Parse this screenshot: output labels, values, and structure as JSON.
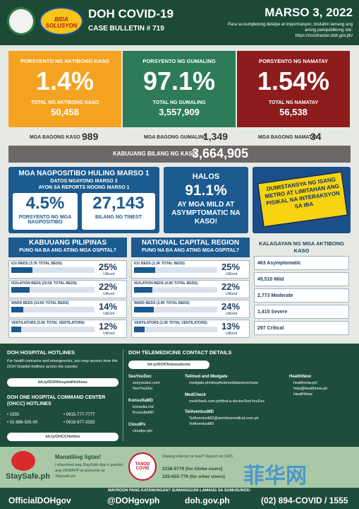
{
  "header": {
    "title": "DOH COVID-19",
    "subtitle": "CASE BULLETIN # 719",
    "date": "MARSO 3, 2022",
    "note": "Para sa kumpletong detalye at impormasyon, bisitahin lamang ang aming pampublikong site:",
    "url": "https://ncovtracker.doh.gov.ph/",
    "badge": "BIDA SOLUSYON"
  },
  "cards": [
    {
      "label": "PORSYENTO NG AKTIBONG KASO",
      "percent": "1.4%",
      "total_label": "TOTAL NG AKTIBONG KASO",
      "total": "50,458",
      "new_label": "MGA BAGONG KASO",
      "new": "989"
    },
    {
      "label": "PORSYENTO NG GUMALING",
      "percent": "97.1%",
      "total_label": "TOTAL NG GUMALING",
      "total": "3,557,909",
      "new_label": "MGA BAGONG GUMALING",
      "new": "1,349"
    },
    {
      "label": "PORSYENTO NG NAMATAY",
      "percent": "1.54%",
      "total_label": "TOTAL NG NAMATAY",
      "total": "56,538",
      "new_label": "MGA BAGONG NAMATAY",
      "new": "34"
    }
  ],
  "total_cases": {
    "label": "KABUUANG BILANG NG KASO",
    "value": "3,664,905"
  },
  "positivity": {
    "title": "MGA NAGPOSITIBO HULING MARSO 1",
    "line1": "DATOS NGAYONG MARSO 3",
    "line2": "AYON SA REPORTS NOONG MARSO 1",
    "rate": "4.5%",
    "rate_label": "PORSYENTO NG MGA NAGPOSITIBO",
    "tested": "27,143",
    "tested_label": "BILANG NG TINEST"
  },
  "mild": {
    "top": "HALOS",
    "value": "91.1%",
    "text": "AY MGA MILD AT ASYMPTOMATIC NA KASO!"
  },
  "distancing": {
    "text": "DUMISTANSYA NG ISANG METRO AT LIMITAHAN ANG PISIKAL NA INTERAKSYON SA IBA"
  },
  "hospitals": {
    "utilized_label": "Utilized",
    "regions": [
      {
        "title": "KABUUANG PILIPINAS",
        "subtitle": "PUNO NA BA ANG ATING MGA OSPITAL?",
        "rows": [
          {
            "label": "ICU BEDS (3.7K TOTAL BEDS)",
            "value": 25,
            "value_label": "25%"
          },
          {
            "label": "ISOLATION BEDS (20.5K TOTAL BEDS)",
            "value": 22,
            "value_label": "22%"
          },
          {
            "label": "WARD BEDS (14.0K TOTAL BEDS)",
            "value": 14,
            "value_label": "14%"
          },
          {
            "label": "VENTILATORS (3.0K TOTAL VENTILATORS)",
            "value": 12,
            "value_label": "12%"
          }
        ]
      },
      {
        "title": "NATIONAL CAPITAL REGION",
        "subtitle": "PUNO NA BA ANG ATING MGA OSPITAL?",
        "rows": [
          {
            "label": "ICU BEDS (1.3K TOTAL BEDS)",
            "value": 25,
            "value_label": "25%"
          },
          {
            "label": "ISOLATION BEDS (4.6K TOTAL BEDS)",
            "value": 22,
            "value_label": "22%"
          },
          {
            "label": "WARD BEDS (3.9K TOTAL BEDS)",
            "value": 24,
            "value_label": "24%"
          },
          {
            "label": "VENTILATORS (1.0K TOTAL VENTILATORS)",
            "value": 13,
            "value_label": "13%"
          }
        ]
      }
    ]
  },
  "status": {
    "title": "KALAGAYAN NG MGA AKTIBONG KASO",
    "items": [
      "463 Asymptomatic",
      "45,510 Mild",
      "2,773 Moderate",
      "1,415 Severe",
      "297 Critical"
    ]
  },
  "hotlines": {
    "title": "DOH HOSPITAL HOTLINES",
    "text": "For health concerns and emergencies, you may access here the DOH hospital hotlines across the country:",
    "link": "bit.ly/DOHHospitalHotlines",
    "ohcc_title": "DOH ONE HOSPITAL COMMAND CENTER (OHCC) HOTLINES",
    "numbers": [
      "• 1555",
      "• 0915-777-7777",
      "• 02-886-505-00",
      "• 0919-977-3333"
    ],
    "ohcc_link": "bit.ly/OHCCHotline"
  },
  "telemedicine": {
    "title": "DOH TELEMEDICINE CONTACT DETAILS",
    "link": "bit.ly/DOHTelemedicine",
    "providers": [
      {
        "name": "SeeYouDoc",
        "lines": [
          "seeyoudoc.com",
          "SeeYouDoc"
        ]
      },
      {
        "name": "KonsultaMD",
        "lines": [
          "konsulta.md",
          "KonsultaMD"
        ]
      },
      {
        "name": "CloudPx",
        "lines": [
          "cloudpx.ph/"
        ]
      },
      {
        "name": "Telimed and Medgate",
        "lines": [
          "medgate.ph/shop/telemedplan/purchase"
        ]
      },
      {
        "name": "MedCheck",
        "lines": [
          "medcheck.com.ph/find-a-doctor/SeeYouDoc"
        ]
      },
      {
        "name": "TelAventusMD",
        "lines": [
          "TelAventusMD@aventusmedical.com.ph",
          "TelAventusMD"
        ]
      },
      {
        "name": "HealthNow",
        "lines": [
          "healthnow.ph/",
          "help@healthnow.ph",
          "HealthNow"
        ]
      }
    ]
  },
  "staysafe": {
    "logo": "StaySafe.ph",
    "title": "Manatiling ligtas!",
    "text": "I-download ang StaySafe App o gamitin ang WEBAPP at pumunta sa Staysafe.ph"
  },
  "tanod": {
    "logo": "TANOD COVID",
    "text": "Walang internet or load? Report via SMS",
    "globe": "2158-5779 (for Globe users)",
    "other": "225-655-779 (for other users)"
  },
  "footer": {
    "question": "MAYROON PANG KATANUNGAN? SUMANGGUNI LAMANG SA SUMUSUNOD:",
    "facebook": "OfficialDOHgov",
    "twitter": "@DOHgovph",
    "web": "doh.gov.ph",
    "phone": "(02) 894-COVID / 1555"
  },
  "watermark": "菲华网"
}
